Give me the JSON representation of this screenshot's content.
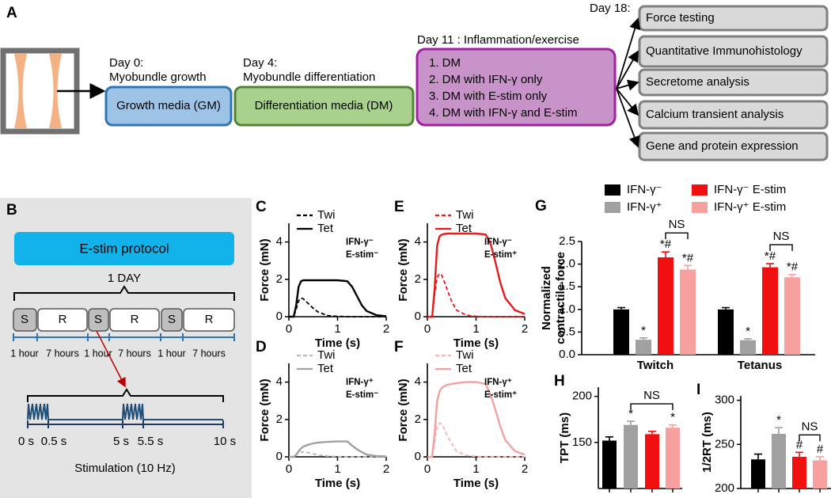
{
  "panel_a": {
    "label": "A",
    "steps": [
      {
        "day": "Day 0:",
        "stage": "Myobundle growth",
        "box": "Growth media (GM)"
      },
      {
        "day": "Day 4:",
        "stage": "Myobundle differentiation",
        "box": "Differentiation media (DM)"
      }
    ],
    "inflammation": {
      "day": "Day 11 : Inflammation/exercise",
      "items": [
        "1.  DM",
        "2.  DM with IFN-γ only",
        "3.  DM with E-stim only",
        "4.  DM with IFN-γ and E-stim"
      ]
    },
    "analysis": {
      "day": "Day 18:",
      "items": [
        "Force testing",
        "Quantitative Immunohistology",
        "Secretome analysis",
        "Calcium transient analysis",
        "Gene and protein expression"
      ]
    }
  },
  "panel_b": {
    "label": "B",
    "title": "E-stim protocol",
    "period": "1 DAY",
    "blocks": [
      "S",
      "R",
      "S",
      "R",
      "S",
      "R"
    ],
    "durations": [
      "1 hour",
      "7 hours",
      "1 hour",
      "7 hours",
      "1 hour",
      "7 hours"
    ],
    "times": [
      "0 s",
      "0.5 s",
      "5 s",
      "5.5 s",
      "10 s"
    ],
    "caption": "Stimulation (10 Hz)"
  },
  "chart_data": [
    {
      "label": "C",
      "type": "line",
      "xlabel": "Time (s)",
      "ylabel": "Force (mN)",
      "annotation": [
        "IFN-γ⁻",
        "E-stim⁻"
      ],
      "x": [
        0,
        0.1,
        0.15,
        0.2,
        0.25,
        0.3,
        0.4,
        0.5,
        0.6,
        0.8,
        1.0,
        1.2,
        1.3,
        1.4,
        1.5,
        1.6,
        1.8,
        2.0
      ],
      "series": [
        {
          "name": "Twi",
          "color": "#000000",
          "style": "dashed",
          "values": [
            0,
            0,
            0.4,
            0.85,
            1.0,
            0.95,
            0.7,
            0.45,
            0.25,
            0.06,
            0.02,
            0,
            0,
            0,
            0,
            0,
            0,
            0
          ]
        },
        {
          "name": "Tet",
          "color": "#000000",
          "style": "solid",
          "values": [
            0,
            0,
            0.6,
            1.6,
            1.9,
            1.95,
            1.95,
            1.95,
            1.95,
            1.95,
            1.95,
            1.9,
            1.6,
            1.1,
            0.6,
            0.3,
            0.08,
            0.02
          ]
        }
      ],
      "xlim": [
        0,
        2
      ],
      "xticks": [
        0,
        1,
        2
      ],
      "ylim": [
        0,
        5
      ],
      "yticks": [
        0,
        2,
        4
      ]
    },
    {
      "label": "D",
      "type": "line",
      "xlabel": "Time (s)",
      "ylabel": "Force (mN)",
      "annotation": [
        "IFN-γ⁺",
        "E-stim⁻"
      ],
      "x": [
        0,
        0.1,
        0.15,
        0.2,
        0.25,
        0.3,
        0.4,
        0.5,
        0.6,
        0.8,
        1.0,
        1.2,
        1.3,
        1.4,
        1.5,
        1.6,
        1.8,
        2.0
      ],
      "series": [
        {
          "name": "Twi",
          "color": "#b8b8b8",
          "style": "dashed",
          "values": [
            0,
            0,
            0.1,
            0.2,
            0.25,
            0.26,
            0.22,
            0.16,
            0.1,
            0.04,
            0.01,
            0,
            0,
            0,
            0,
            0,
            0,
            0
          ]
        },
        {
          "name": "Tet",
          "color": "#a0a0a0",
          "style": "solid",
          "values": [
            0,
            0,
            0.1,
            0.3,
            0.45,
            0.55,
            0.65,
            0.72,
            0.76,
            0.8,
            0.82,
            0.82,
            0.6,
            0.4,
            0.25,
            0.12,
            0.04,
            0.02
          ]
        }
      ],
      "xlim": [
        0,
        2
      ],
      "xticks": [
        0,
        1,
        2
      ],
      "ylim": [
        0,
        5
      ],
      "yticks": [
        0,
        2,
        4
      ]
    },
    {
      "label": "E",
      "type": "line",
      "xlabel": "Time (s)",
      "ylabel": "Force (mN)",
      "annotation": [
        "IFN-γ⁻",
        "E-stim⁺"
      ],
      "x": [
        0,
        0.1,
        0.15,
        0.2,
        0.25,
        0.3,
        0.4,
        0.5,
        0.6,
        0.8,
        1.0,
        1.2,
        1.3,
        1.4,
        1.5,
        1.6,
        1.8,
        2.0
      ],
      "series": [
        {
          "name": "Twi",
          "color": "#e41a1c",
          "style": "dashed",
          "values": [
            0,
            0,
            1.2,
            2.1,
            2.3,
            2.2,
            1.5,
            0.8,
            0.35,
            0.08,
            0.02,
            0,
            0,
            0,
            0,
            0,
            0,
            0
          ]
        },
        {
          "name": "Tet",
          "color": "#e41a1c",
          "style": "solid",
          "values": [
            0,
            0,
            1.5,
            3.8,
            4.3,
            4.4,
            4.45,
            4.45,
            4.45,
            4.45,
            4.45,
            4.4,
            3.9,
            2.9,
            1.8,
            1.0,
            0.35,
            0.15
          ]
        }
      ],
      "xlim": [
        0,
        2
      ],
      "xticks": [
        0,
        1,
        2
      ],
      "ylim": [
        0,
        5
      ],
      "yticks": [
        0,
        2,
        4
      ]
    },
    {
      "label": "F",
      "type": "line",
      "xlabel": "Time (s)",
      "ylabel": "Force (mN)",
      "annotation": [
        "IFN-γ⁺",
        "E-stim⁺"
      ],
      "x": [
        0,
        0.1,
        0.15,
        0.2,
        0.25,
        0.3,
        0.4,
        0.5,
        0.6,
        0.8,
        1.0,
        1.2,
        1.3,
        1.4,
        1.5,
        1.6,
        1.8,
        2.0
      ],
      "series": [
        {
          "name": "Twi",
          "color": "#f7b3b3",
          "style": "dashed",
          "values": [
            0,
            0,
            0.8,
            1.6,
            1.8,
            1.75,
            1.2,
            0.7,
            0.3,
            0.07,
            0.02,
            0,
            0,
            0,
            0,
            0,
            0,
            0
          ]
        },
        {
          "name": "Tet",
          "color": "#f4a0a0",
          "style": "solid",
          "values": [
            0,
            0,
            1.3,
            3.0,
            3.5,
            3.7,
            3.85,
            3.9,
            3.95,
            4.0,
            4.0,
            3.9,
            3.3,
            2.5,
            1.6,
            0.9,
            0.3,
            0.12
          ]
        }
      ],
      "xlim": [
        0,
        2
      ],
      "xticks": [
        0,
        1,
        2
      ],
      "ylim": [
        0,
        5
      ],
      "yticks": [
        0,
        2,
        4
      ]
    },
    {
      "label": "G",
      "type": "grouped_bar",
      "ylabel": [
        "Normalized",
        "contractile force"
      ],
      "categories": [
        "Twitch",
        "Tetanus"
      ],
      "series": [
        {
          "name": "IFN-γ⁻",
          "color": "#000000",
          "values": [
            1.0,
            1.0
          ],
          "errors": [
            0.04,
            0.04
          ]
        },
        {
          "name": "IFN-γ⁺",
          "color": "#a0a0a0",
          "values": [
            0.33,
            0.32
          ],
          "errors": [
            0.04,
            0.03
          ],
          "marks": [
            "*",
            "*"
          ]
        },
        {
          "name": "IFN-γ⁻ E-stim",
          "color": "#f20f0f",
          "values": [
            2.15,
            1.93
          ],
          "errors": [
            0.12,
            0.08
          ],
          "marks": [
            "*#",
            "*#"
          ]
        },
        {
          "name": "IFN-γ⁺ E-stim",
          "color": "#f7a0a0",
          "values": [
            1.88,
            1.71
          ],
          "errors": [
            0.09,
            0.06
          ],
          "marks": [
            "*#",
            "*#"
          ]
        }
      ],
      "ns_labels": [
        "NS",
        "NS"
      ],
      "ylim": [
        0,
        2.5
      ],
      "yticks": [
        {
          "value": 0,
          "label": "0.0"
        },
        0.5,
        {
          "value": 1,
          "label": "1.0"
        },
        1.5,
        {
          "value": 2,
          "label": "2.0"
        },
        2.5
      ]
    },
    {
      "label": "H",
      "type": "bar",
      "ylabel": "TPT (ms)",
      "categories": [
        null,
        null,
        null,
        null
      ],
      "colors": [
        "#000000",
        "#a0a0a0",
        "#f20f0f",
        "#f7a0a0"
      ],
      "values": [
        152,
        169,
        159,
        166
      ],
      "errors": [
        4,
        4,
        3,
        3
      ],
      "marks": [
        null,
        "*",
        null,
        "*"
      ],
      "ns_label": "NS",
      "ylim": [
        100,
        210
      ],
      "yticks": [
        150,
        200
      ]
    },
    {
      "label": "I",
      "type": "bar",
      "ylabel": "1/2RT (ms)",
      "categories": [
        null,
        null,
        null,
        null
      ],
      "colors": [
        "#000000",
        "#a0a0a0",
        "#f20f0f",
        "#f7a0a0"
      ],
      "values": [
        233,
        262,
        236,
        232
      ],
      "errors": [
        6,
        7,
        5,
        4
      ],
      "marks": [
        null,
        "*",
        "#",
        "#"
      ],
      "ns_label": "NS",
      "ylim": [
        200,
        305
      ],
      "yticks": [
        200,
        250,
        300
      ]
    }
  ]
}
